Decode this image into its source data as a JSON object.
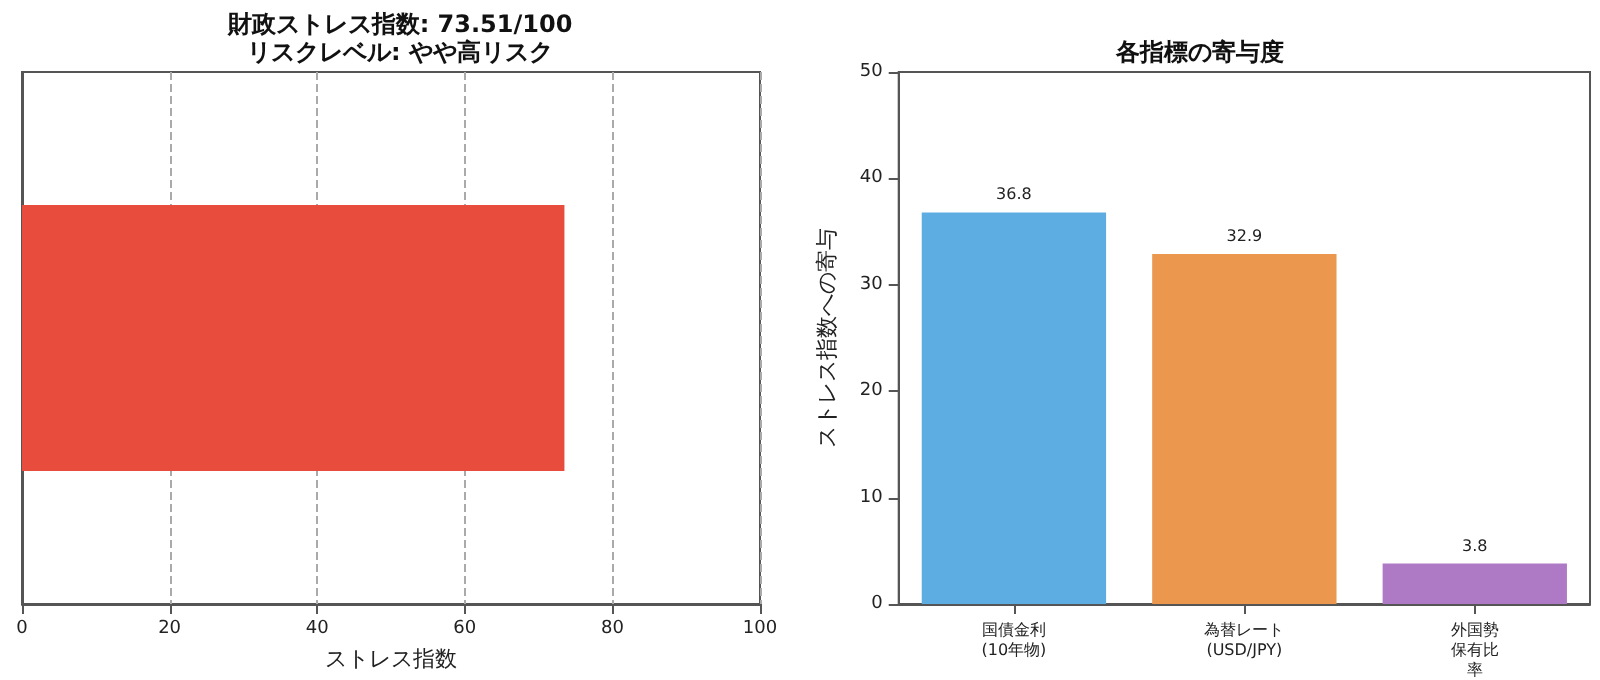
{
  "chart_data": [
    {
      "type": "bar",
      "orientation": "horizontal",
      "title": "財政ストレス指数: 73.51/100\nリスクレベル: やや高リスク",
      "xlabel": "ストレス指数",
      "categories": [
        null
      ],
      "values": [
        73.5
      ],
      "color": "#e74c3c",
      "xlim": [
        0,
        100
      ],
      "xticks": [
        0,
        20,
        40,
        60,
        80,
        100
      ],
      "grid": "x"
    },
    {
      "type": "bar",
      "title": "各指標の寄与度",
      "ylabel": "ストレス指数への寄与",
      "categories": [
        "国債金利\n(10年物)",
        "為替レート\n(USD/JPY)",
        "外国勢保有比率"
      ],
      "values": [
        36.8,
        32.9,
        3.8
      ],
      "colors": [
        "#5dade2",
        "#eb984e",
        "#af7ac5"
      ],
      "ylim": [
        0,
        50
      ],
      "yticks": [
        0,
        10,
        20,
        30,
        40,
        50
      ],
      "data_labels": true
    }
  ]
}
